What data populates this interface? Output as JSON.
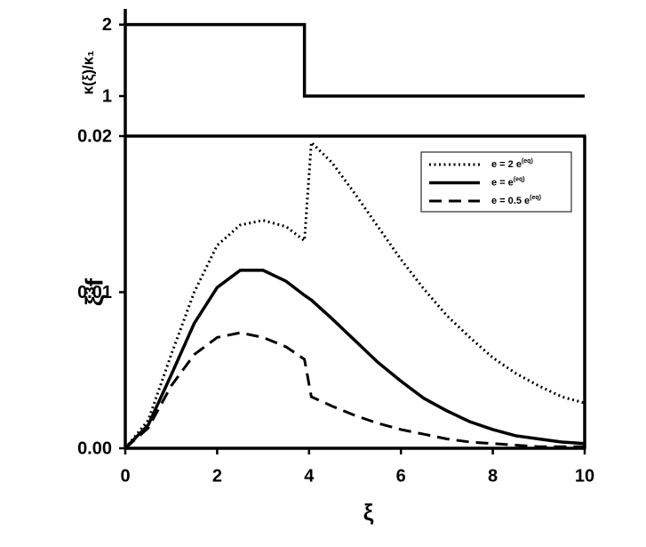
{
  "chart_data": [
    {
      "type": "line",
      "ylabel": "κ(ξ)/κ₁",
      "x": [
        0,
        3.9,
        3.9,
        10
      ],
      "series": [
        {
          "color": "#000000",
          "values": [
            2,
            2,
            1,
            1
          ]
        }
      ],
      "xlim": [
        0,
        10
      ],
      "ylim": [
        0.44,
        2.22
      ],
      "yticks": [
        1,
        2
      ]
    },
    {
      "type": "line",
      "xlabel": "ξ",
      "ylabel": "ξ³f",
      "x": [
        0,
        0.5,
        1,
        1.5,
        2,
        2.5,
        3,
        3.5,
        3.9,
        4.05,
        4.5,
        5,
        5.5,
        6,
        6.5,
        7,
        7.5,
        8,
        8.5,
        9,
        9.5,
        10
      ],
      "series": [
        {
          "name": "e = 2 e(eq)",
          "color": "#000000",
          "dash": "dotted",
          "values": [
            0,
            0.0018,
            0.006,
            0.01,
            0.013,
            0.0143,
            0.0146,
            0.0142,
            0.0133,
            0.0196,
            0.0183,
            0.0163,
            0.0142,
            0.0121,
            0.0102,
            0.0085,
            0.0071,
            0.0058,
            0.0048,
            0.004,
            0.0033,
            0.0029
          ]
        },
        {
          "name": "e = e(eq)",
          "color": "#000000",
          "dash": "solid",
          "values": [
            0,
            0.0015,
            0.0047,
            0.008,
            0.0103,
            0.0114,
            0.0114,
            0.0107,
            0.0098,
            0.0095,
            0.0083,
            0.0069,
            0.0055,
            0.0043,
            0.0032,
            0.0024,
            0.0017,
            0.0012,
            0.0008,
            0.0006,
            0.0004,
            0.0003
          ]
        },
        {
          "name": "e = 0.5 e(eq)",
          "color": "#000000",
          "dash": "dashed",
          "values": [
            0,
            0.0013,
            0.004,
            0.006,
            0.0071,
            0.0074,
            0.0071,
            0.0065,
            0.0057,
            0.0033,
            0.0027,
            0.0021,
            0.0016,
            0.0012,
            0.0009,
            0.0006,
            0.0004,
            0.0003,
            0.0002,
            0.0001,
            0.0001,
            0.0001
          ]
        }
      ],
      "xlim": [
        0,
        10
      ],
      "xticks": [
        0,
        2,
        4,
        6,
        8,
        10
      ],
      "ylim": [
        0,
        0.02
      ],
      "yticks": [
        {
          "value": 0,
          "label": "0.00"
        },
        0.01,
        0.02
      ],
      "legend": "upper right"
    }
  ]
}
